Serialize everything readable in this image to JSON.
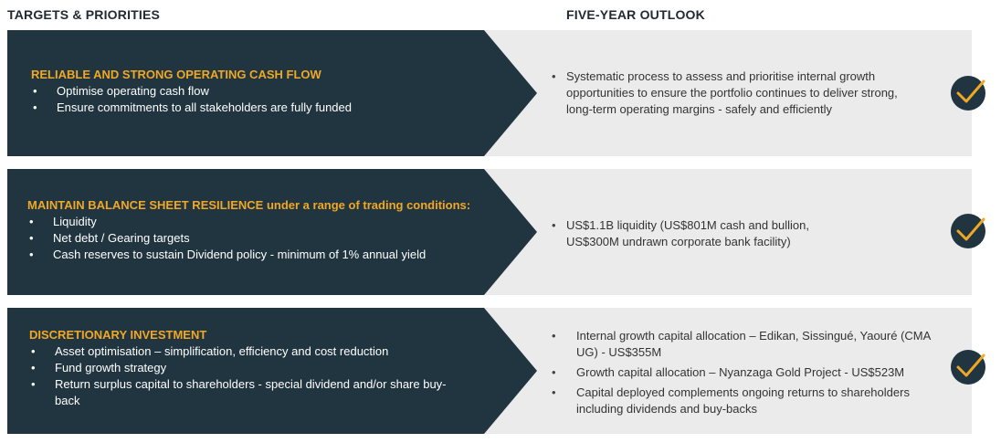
{
  "headers": {
    "left": "TARGETS & PRIORITIES",
    "right": "FIVE-YEAR OUTLOOK"
  },
  "colors": {
    "navy": "#213541",
    "gold": "#f0a824",
    "panel": "#ebebeb"
  },
  "rows": [
    {
      "title": "RELIABLE AND STRONG OPERATING CASH FLOW",
      "title_suffix": "",
      "bullets": [
        "Optimise operating cash flow",
        "Ensure commitments to all stakeholders are fully funded"
      ],
      "outlook": [
        "Systematic process to assess and prioritise internal growth opportunities to ensure the portfolio continues to deliver strong, long-term operating margins - safely and efficiently"
      ],
      "status_icon": "check-circle-icon"
    },
    {
      "title": "MAINTAIN BALANCE SHEET RESILIENCE",
      "title_suffix": " under a range of trading conditions:",
      "bullets": [
        "Liquidity",
        "Net debt / Gearing targets",
        "Cash reserves to sustain Dividend policy - minimum of 1% annual yield"
      ],
      "outlook": [
        "US$1.1B liquidity (US$801M cash and bullion, US$300M undrawn corporate bank facility)"
      ],
      "status_icon": "check-circle-icon"
    },
    {
      "title": "DISCRETIONARY INVESTMENT",
      "title_suffix": "",
      "bullets": [
        "Asset optimisation – simplification, efficiency and cost reduction",
        "Fund growth strategy",
        "Return surplus capital to shareholders - special dividend and/or share buy-back"
      ],
      "outlook": [
        "Internal growth capital allocation – Edikan, Sissingué, Yaouré (CMA UG) - US$355M",
        "Growth capital allocation – Nyanzaga Gold Project - US$523M",
        "Capital deployed complements ongoing returns to shareholders including dividends and buy-backs"
      ],
      "status_icon": "check-circle-icon"
    }
  ]
}
